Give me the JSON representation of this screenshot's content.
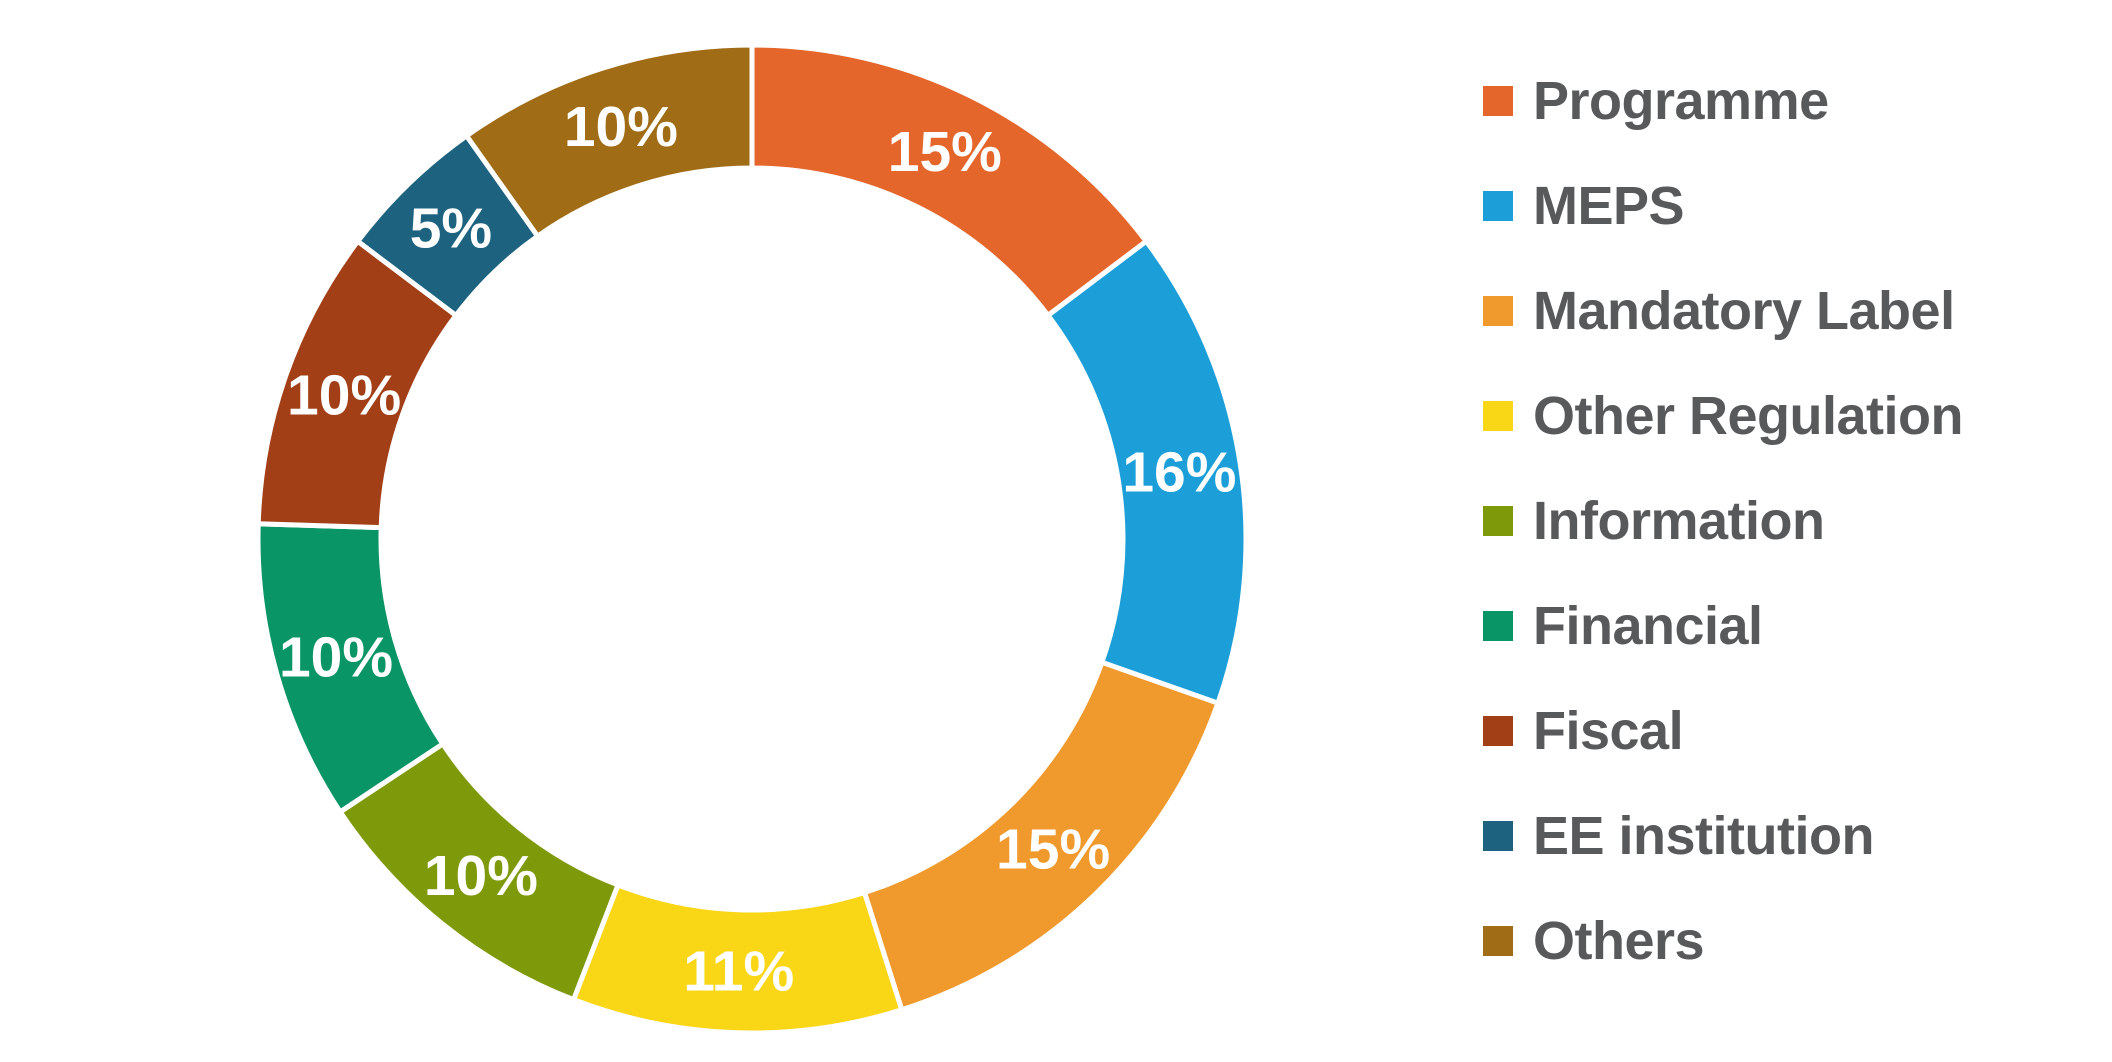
{
  "chart_data": {
    "type": "pie",
    "subtype": "donut",
    "title": "",
    "categories": [
      "Programme",
      "MEPS",
      "Mandatory Label",
      "Other Regulation",
      "Information",
      "Financial",
      "Fiscal",
      "EE institution",
      "Others"
    ],
    "values": [
      15,
      16,
      15,
      11,
      10,
      10,
      10,
      5,
      10
    ],
    "slice_labels": [
      "15%",
      "16%",
      "15%",
      "11%",
      "10%",
      "10%",
      "10%",
      "5%",
      "10%"
    ],
    "colors": [
      "#E5662B",
      "#1C9FD9",
      "#F0992C",
      "#F9D616",
      "#7E9A0B",
      "#0A9566",
      "#A23F17",
      "#1D6380",
      "#A06C15"
    ],
    "start_angle": "12 o'clock, clockwise",
    "legend_position": "right",
    "slice_label_color": "#FFFFFF",
    "legend_text_color": "#58595B",
    "separator_color": "#FFFFFF",
    "background_color": "#FFFFFF"
  }
}
